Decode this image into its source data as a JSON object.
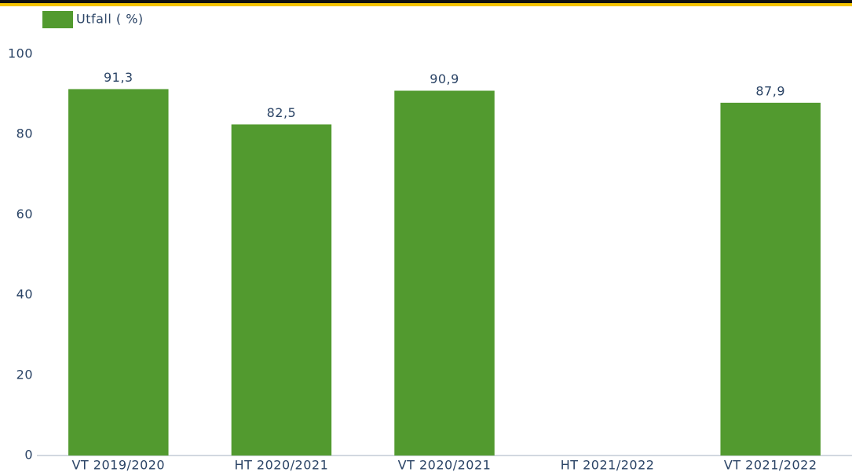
{
  "chart_data": {
    "type": "bar",
    "legend": "Utfall ( %)",
    "categories": [
      "VT 2019/2020",
      "HT 2020/2021",
      "VT 2020/2021",
      "HT 2021/2022",
      "VT 2021/2022"
    ],
    "values": [
      91.3,
      82.5,
      90.9,
      null,
      87.9
    ],
    "value_labels": [
      "91,3",
      "82,5",
      "90,9",
      null,
      "87,9"
    ],
    "color": "#529a2f",
    "ylim": [
      0,
      100
    ],
    "yticks": [
      0,
      20,
      40,
      60,
      80,
      100
    ],
    "grid": false
  }
}
